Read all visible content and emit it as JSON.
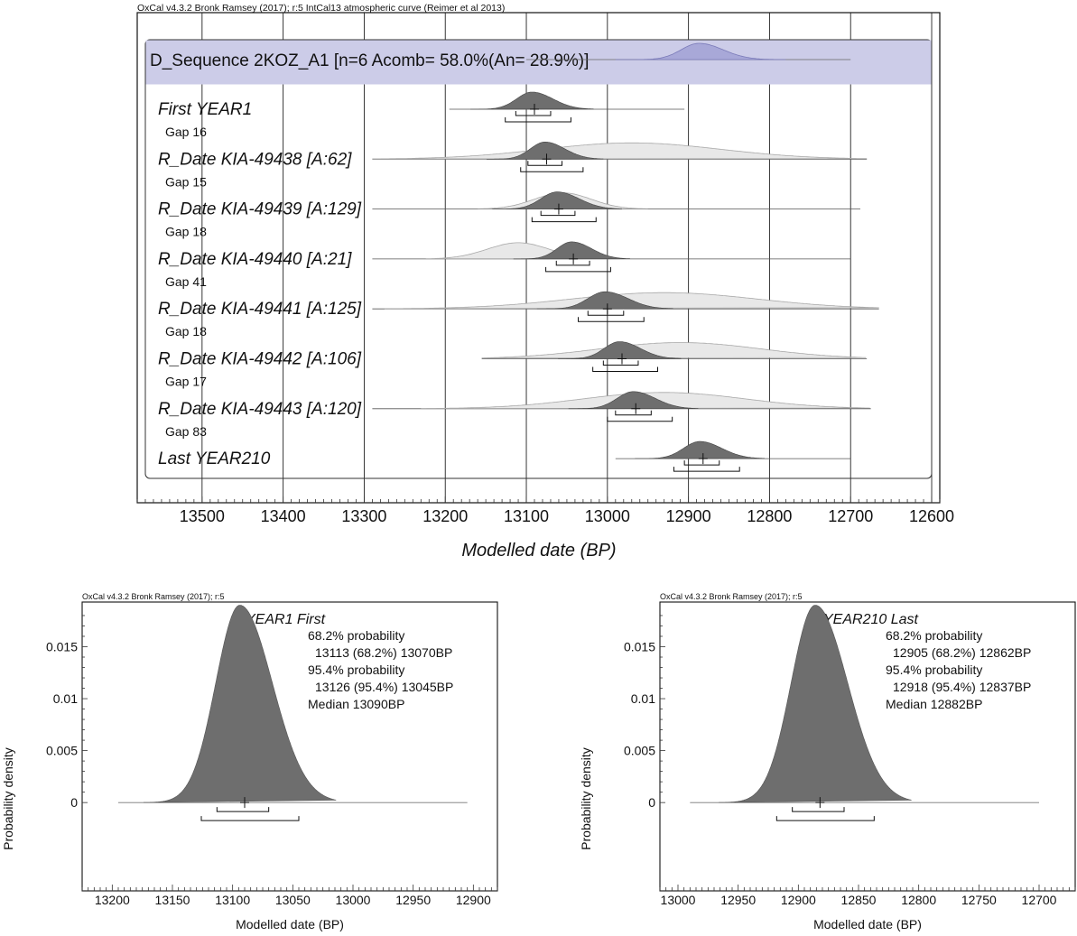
{
  "chart_data": [
    {
      "type": "area",
      "header": "OxCal v4.3.2 Bronk Ramsey (2017); r:5 IntCal13 atmospheric curve (Reimer et al 2013)",
      "title": "D_Sequence 2KOZ_A1 [n=6 Acomb= 58.0%(An= 28.9%)]",
      "xlabel": "Modelled date (BP)",
      "xlim": [
        13580,
        12590
      ],
      "x_reversed": true,
      "x_ticks": [
        13500,
        13400,
        13300,
        13200,
        13100,
        13000,
        12900,
        12800,
        12700,
        12600
      ],
      "grid": true,
      "accent_color": "#cccce8",
      "prior_color": "#e8e8e8",
      "posterior_color": "#6e6e6e",
      "sequence_distribution": {
        "mean": 12887,
        "sd": 22,
        "line": [
          13100,
          12700
        ]
      },
      "rows": [
        {
          "label": "First YEAR1",
          "gap": "Gap 16",
          "posterior": {
            "mean": 13093,
            "sd": 19
          },
          "prior": null,
          "cross": 13090,
          "ranges68": [
            13113,
            13070
          ],
          "ranges95": [
            13126,
            13045
          ],
          "line": [
            13195,
            12905
          ]
        },
        {
          "label": "R_Date KIA-49438 [A:62]",
          "gap": "Gap 15",
          "posterior": {
            "mean": 13077,
            "sd": 18
          },
          "prior": {
            "mean": 12970,
            "sd": 110
          },
          "cross": 13075,
          "ranges68": [
            13098,
            13056
          ],
          "ranges95": [
            13107,
            13030
          ],
          "line": [
            13290,
            12680
          ]
        },
        {
          "label": "R_Date KIA-49439 [A:129]",
          "gap": "Gap 18",
          "posterior": {
            "mean": 13062,
            "sd": 20
          },
          "prior": {
            "mean": 13055,
            "sd": 35
          },
          "cross": 13060,
          "ranges68": [
            13082,
            13040
          ],
          "ranges95": [
            13093,
            13014
          ],
          "line": [
            13290,
            12688
          ]
        },
        {
          "label": "R_Date KIA-49440 [A:21]",
          "gap": "Gap 41",
          "posterior": {
            "mean": 13044,
            "sd": 18
          },
          "prior": {
            "mean": 13110,
            "sd": 38
          },
          "cross": 13042,
          "ranges68": [
            13063,
            13022
          ],
          "ranges95": [
            13076,
            12996
          ],
          "line": [
            13290,
            12700
          ]
        },
        {
          "label": "R_Date KIA-49441 [A:125]",
          "gap": "Gap 18",
          "posterior": {
            "mean": 13003,
            "sd": 21
          },
          "prior": {
            "mean": 12930,
            "sd": 115
          },
          "cross": 13000,
          "ranges68": [
            13024,
            12980
          ],
          "ranges95": [
            13036,
            12955
          ],
          "line": [
            13290,
            12665
          ]
        },
        {
          "label": "R_Date KIA-49442 [A:106]",
          "gap": "Gap 17",
          "posterior": {
            "mean": 12985,
            "sd": 19
          },
          "prior": {
            "mean": 12910,
            "sd": 100
          },
          "cross": 12982,
          "ranges68": [
            13005,
            12962
          ],
          "ranges95": [
            13018,
            12938
          ],
          "line": [
            13155,
            12680
          ]
        },
        {
          "label": "R_Date KIA-49443 [A:120]",
          "gap": "Gap 83",
          "posterior": {
            "mean": 12968,
            "sd": 20
          },
          "prior": {
            "mean": 12930,
            "sd": 100
          },
          "cross": 12965,
          "ranges68": [
            12990,
            12946
          ],
          "ranges95": [
            13000,
            12920
          ],
          "line": [
            13290,
            12675
          ]
        },
        {
          "label": "Last YEAR210",
          "gap": "",
          "posterior": {
            "mean": 12886,
            "sd": 20
          },
          "prior": null,
          "cross": 12882,
          "ranges68": [
            12905,
            12862
          ],
          "ranges95": [
            12918,
            12837
          ],
          "line": [
            12990,
            12700
          ]
        }
      ]
    },
    {
      "type": "area",
      "header": "OxCal v4.3.2 Bronk Ramsey (2017); r:5",
      "title": "YEAR1 First",
      "annotations": [
        "68.2% probability",
        "13113 (68.2%) 13070BP",
        "95.4% probability",
        "13126 (95.4%) 13045BP",
        "Median 13090BP"
      ],
      "xlabel": "Modelled date (BP)",
      "ylabel": "Probability density",
      "xlim": [
        13225,
        12880
      ],
      "x_ticks": [
        13200,
        13150,
        13100,
        13050,
        13000,
        12950,
        12900
      ],
      "ylim": [
        -0.0085,
        0.0193
      ],
      "y_ticks": [
        0,
        0.005,
        0.01,
        0.015
      ],
      "y_tick_labels": [
        "0",
        "0.005",
        "0.01",
        "0.015"
      ],
      "distribution": {
        "mean": 13094,
        "sd": 20,
        "peak": 0.019
      },
      "line": [
        13195,
        12905
      ],
      "median": 13090,
      "ranges68": [
        13113,
        13070
      ],
      "ranges95": [
        13126,
        13045
      ],
      "fill_color": "#6e6e6e"
    },
    {
      "type": "area",
      "header": "OxCal v4.3.2 Bronk Ramsey (2017); r:5",
      "title": "YEAR210 Last",
      "annotations": [
        "68.2% probability",
        "12905 (68.2%) 12862BP",
        "95.4% probability",
        "12918 (95.4%) 12837BP",
        "Median 12882BP"
      ],
      "xlabel": "Modelled date (BP)",
      "ylabel": "Probability density",
      "xlim": [
        13015,
        12670
      ],
      "x_ticks": [
        13000,
        12950,
        12900,
        12850,
        12800,
        12750,
        12700
      ],
      "ylim": [
        -0.0085,
        0.0193
      ],
      "y_ticks": [
        0,
        0.005,
        0.01,
        0.015
      ],
      "y_tick_labels": [
        "0",
        "0.005",
        "0.01",
        "0.015"
      ],
      "distribution": {
        "mean": 12886,
        "sd": 20,
        "peak": 0.019
      },
      "line": [
        12990,
        12700
      ],
      "median": 12882,
      "ranges68": [
        12905,
        12862
      ],
      "ranges95": [
        12918,
        12837
      ],
      "fill_color": "#6e6e6e"
    }
  ]
}
